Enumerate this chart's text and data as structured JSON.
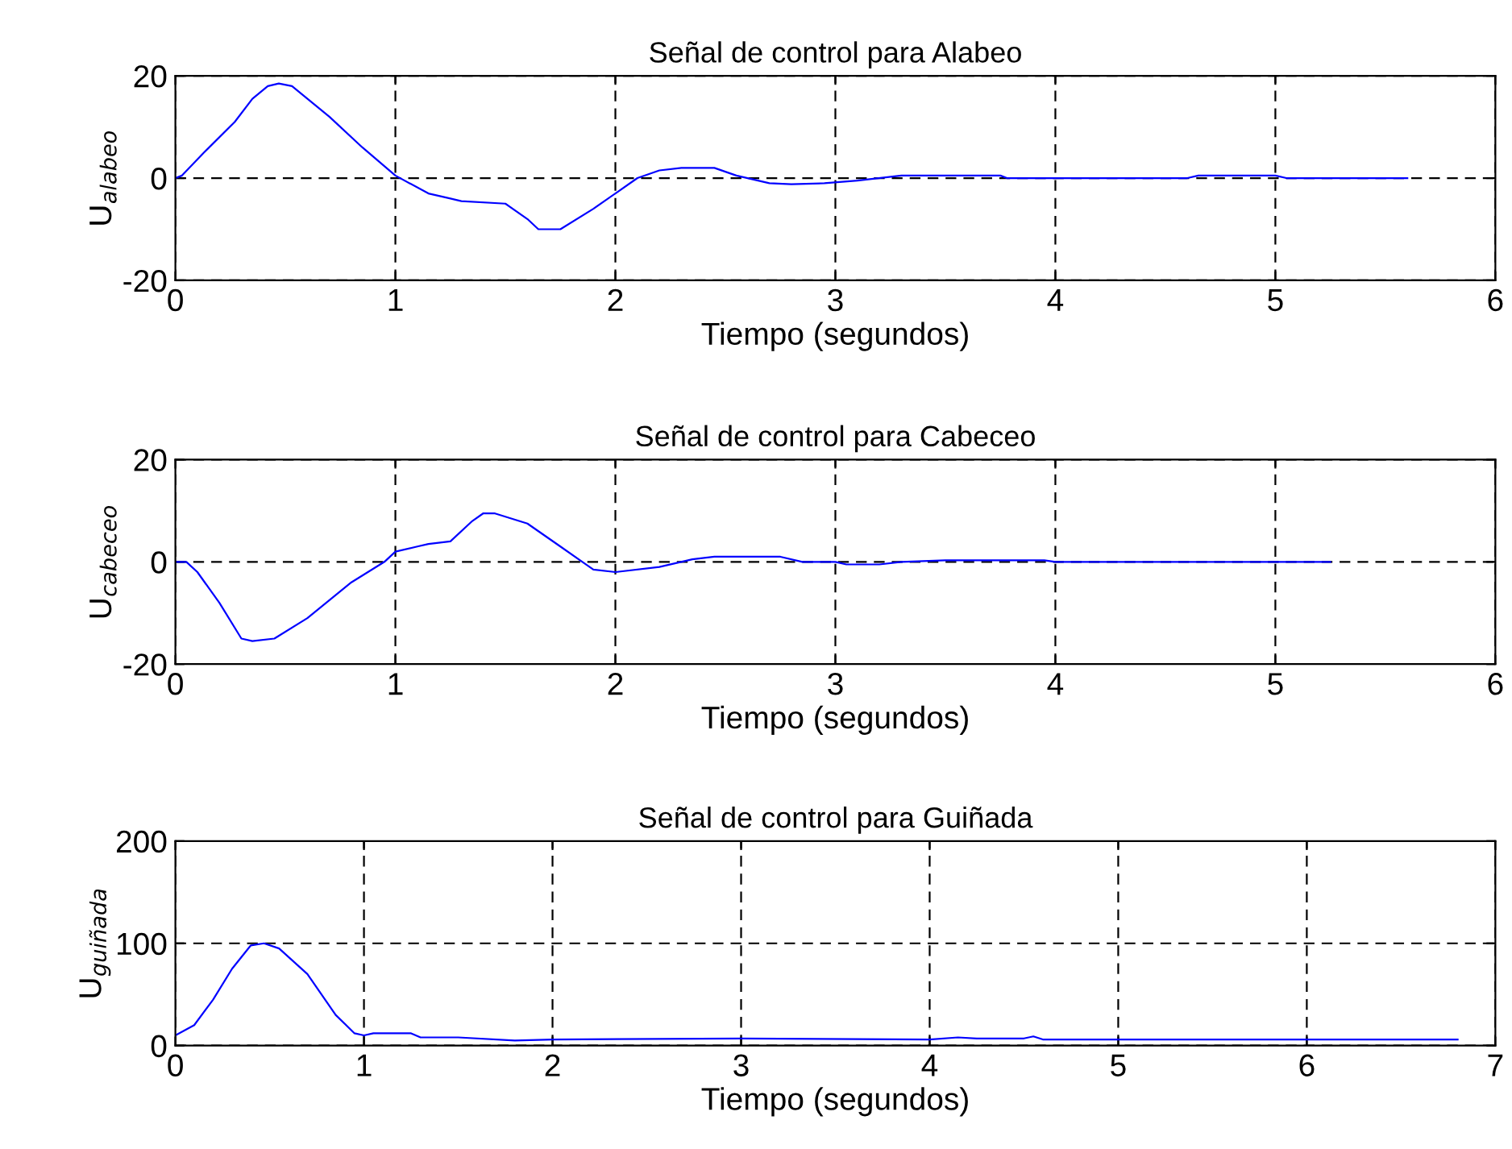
{
  "chart_data": [
    {
      "type": "line",
      "title": "Señal de control para Alabeo",
      "xlabel": "Tiempo (segundos)",
      "ylabel": "U$_{alabeo}$",
      "xlim": [
        0,
        6
      ],
      "ylim": [
        -20,
        20
      ],
      "xticks": [
        0,
        1,
        2,
        3,
        4,
        5,
        6
      ],
      "yticks": [
        -20,
        0,
        20
      ],
      "grid": true,
      "series": [
        {
          "color": "#0000ff",
          "x": [
            0,
            0.03,
            0.13,
            0.27,
            0.35,
            0.42,
            0.47,
            0.53,
            0.7,
            0.85,
            1,
            1.15,
            1.25,
            1.3,
            1.5,
            1.6,
            1.65,
            1.75,
            1.9,
            2,
            2.1,
            2.2,
            2.3,
            2.45,
            2.55,
            2.7,
            2.8,
            2.95,
            3.1,
            3.3,
            3.75,
            3.78,
            4.6,
            4.65,
            5,
            5.05,
            5.6
          ],
          "values": [
            0,
            0.5,
            5,
            11,
            15.5,
            18,
            18.5,
            18,
            12,
            6,
            0.5,
            -3,
            -4,
            -4.5,
            -5,
            -8,
            -10,
            -10,
            -6,
            -3,
            0,
            1.5,
            2,
            2,
            0.5,
            -1,
            -1.2,
            -1,
            -0.5,
            0.5,
            0.5,
            0,
            0,
            0.5,
            0.5,
            0,
            0
          ]
        }
      ]
    },
    {
      "type": "line",
      "title": "Señal de control para Cabeceo",
      "xlabel": "Tiempo (segundos)",
      "ylabel": "U$_{cabeceo}$",
      "xlim": [
        0,
        6
      ],
      "ylim": [
        -20,
        20
      ],
      "xticks": [
        0,
        1,
        2,
        3,
        4,
        5,
        6
      ],
      "yticks": [
        -20,
        0,
        20
      ],
      "grid": true,
      "series": [
        {
          "color": "#0000ff",
          "x": [
            0,
            0.05,
            0.1,
            0.2,
            0.3,
            0.35,
            0.45,
            0.6,
            0.8,
            0.95,
            1,
            1.1,
            1.15,
            1.25,
            1.35,
            1.4,
            1.45,
            1.6,
            1.75,
            1.85,
            1.9,
            2,
            2.2,
            2.35,
            2.45,
            2.75,
            2.85,
            3,
            3.05,
            3.2,
            3.3,
            3.5,
            3.95,
            4,
            5.25
          ],
          "values": [
            0,
            0,
            -2,
            -8,
            -15,
            -15.5,
            -15,
            -11,
            -4,
            0,
            2,
            3,
            3.5,
            4,
            8,
            9.5,
            9.5,
            7.5,
            3,
            0,
            -1.5,
            -2,
            -1,
            0.5,
            1,
            1,
            0,
            0,
            -0.5,
            -0.5,
            0,
            0.3,
            0.3,
            0,
            0
          ]
        }
      ]
    },
    {
      "type": "line",
      "title": "Señal de control para Guiñada",
      "xlabel": "Tiempo (segundos)",
      "ylabel": "U$_{guiñada}$",
      "xlim": [
        0,
        7
      ],
      "ylim": [
        0,
        200
      ],
      "xticks": [
        0,
        1,
        2,
        3,
        4,
        5,
        6,
        7
      ],
      "yticks": [
        0,
        100,
        200
      ],
      "grid": true,
      "series": [
        {
          "color": "#0000ff",
          "x": [
            0,
            0.1,
            0.2,
            0.3,
            0.4,
            0.47,
            0.55,
            0.7,
            0.85,
            0.95,
            1,
            1.05,
            1.25,
            1.3,
            1.5,
            1.8,
            2,
            3,
            4,
            4.15,
            4.25,
            4.5,
            4.55,
            4.6,
            6.8
          ],
          "values": [
            10,
            20,
            45,
            75,
            98,
            100,
            95,
            70,
            30,
            12,
            10,
            12,
            12,
            8,
            8,
            5,
            6,
            7,
            6,
            8,
            7,
            7,
            9,
            6,
            6
          ]
        }
      ]
    }
  ]
}
